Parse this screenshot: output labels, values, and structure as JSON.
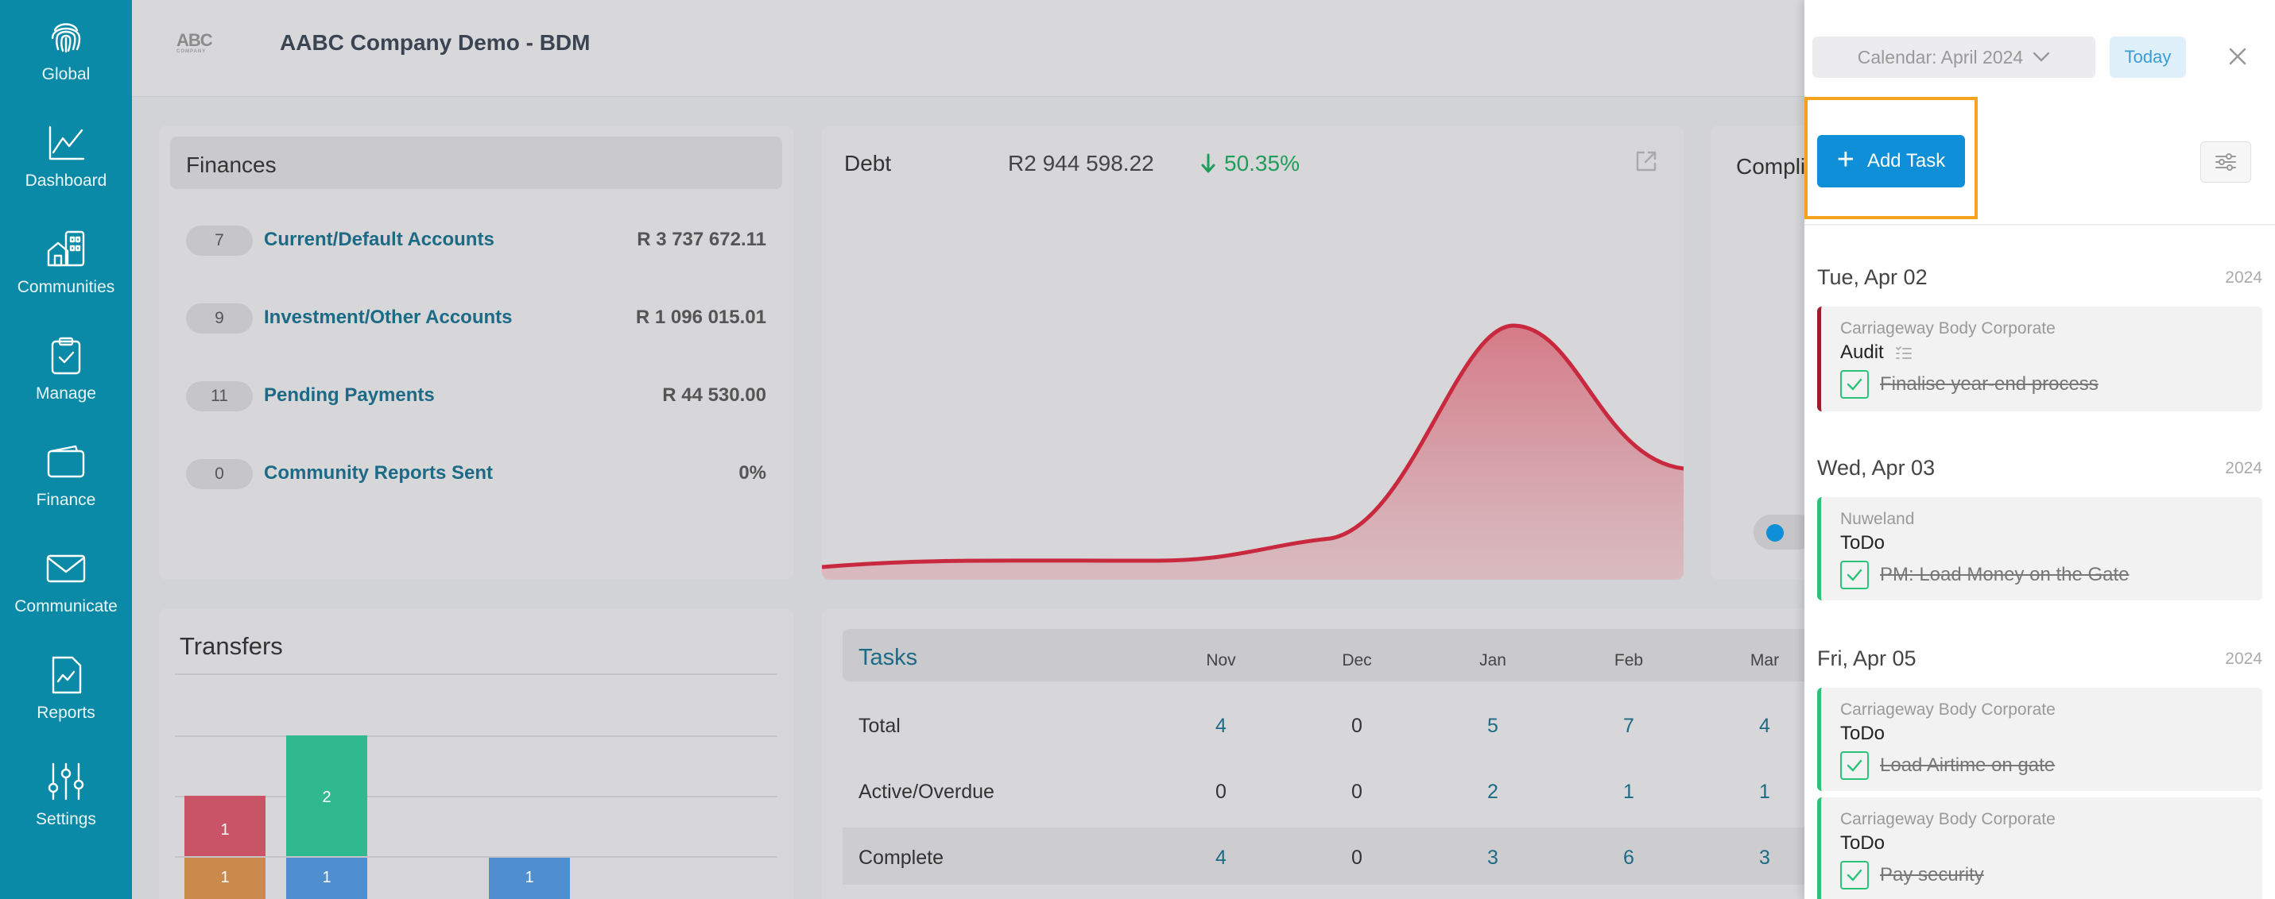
{
  "sidebar": {
    "items": [
      {
        "label": "Global",
        "icon": "fingerprint-icon"
      },
      {
        "label": "Dashboard",
        "icon": "line-chart-icon"
      },
      {
        "label": "Communities",
        "icon": "buildings-icon"
      },
      {
        "label": "Manage",
        "icon": "clipboard-icon"
      },
      {
        "label": "Finance",
        "icon": "wallet-icon"
      },
      {
        "label": "Communicate",
        "icon": "envelope-icon"
      },
      {
        "label": "Reports",
        "icon": "report-icon"
      },
      {
        "label": "Settings",
        "icon": "sliders-icon"
      }
    ]
  },
  "header": {
    "logo_text": "ABC",
    "logo_sub": "COMPANY",
    "company_name": "AABC Company Demo - BDM"
  },
  "finances": {
    "title": "Finances",
    "rows": [
      {
        "count": "7",
        "label": "Current/Default Accounts",
        "amount": "R 3 737 672.11"
      },
      {
        "count": "9",
        "label": "Investment/Other Accounts",
        "amount": "R 1 096 015.01"
      },
      {
        "count": "11",
        "label": "Pending Payments",
        "amount": "R 44 530.00"
      },
      {
        "count": "0",
        "label": "Community Reports Sent",
        "amount": "0%"
      }
    ]
  },
  "debt": {
    "label": "Debt",
    "amount": "R2 944 598.22",
    "change": "50.35%",
    "line_color": "#c8293e"
  },
  "compliance": {
    "label": "Compli"
  },
  "transfers": {
    "title": "Transfers",
    "bars": [
      {
        "segments": [
          {
            "value": "1",
            "color": "#c95466"
          },
          {
            "value": "1",
            "color": "#c98a4b"
          }
        ]
      },
      {
        "segments": [
          {
            "value": "2",
            "color": "#2fb98d"
          },
          {
            "value": "1",
            "color": "#4f8fd0"
          }
        ]
      },
      {
        "segments": [
          {
            "value": "1",
            "color": "#4f8fd0"
          }
        ]
      }
    ]
  },
  "tasks": {
    "title": "Tasks",
    "months": [
      "Nov",
      "Dec",
      "Jan",
      "Feb",
      "Mar"
    ],
    "rows": [
      {
        "label": "Total",
        "values": [
          "4",
          "0",
          "5",
          "7",
          "4"
        ]
      },
      {
        "label": "Active/Overdue",
        "values": [
          "0",
          "0",
          "2",
          "1",
          "1"
        ]
      },
      {
        "label": "Complete",
        "values": [
          "4",
          "0",
          "3",
          "6",
          "3"
        ]
      }
    ]
  },
  "panel": {
    "calendar_label": "Calendar: April 2024",
    "today_label": "Today",
    "add_task_label": "Add Task",
    "days": [
      {
        "date": "Tue, Apr 02",
        "year": "2024",
        "tasks": [
          {
            "org": "Carriageway Body Corporate",
            "type": "Audit",
            "text": "Finalise year-end process",
            "accent": "#9c1c2c"
          }
        ]
      },
      {
        "date": "Wed, Apr 03",
        "year": "2024",
        "tasks": [
          {
            "org": "Nuweland",
            "type": "ToDo",
            "text": "PM: Load Money on the Gate",
            "accent": "#2bc27a"
          }
        ]
      },
      {
        "date": "Fri, Apr 05",
        "year": "2024",
        "tasks": [
          {
            "org": "Carriageway Body Corporate",
            "type": "ToDo",
            "text": "Load Airtime on gate",
            "accent": "#2bc27a"
          },
          {
            "org": "Carriageway Body Corporate",
            "type": "ToDo",
            "text": "Pay security",
            "accent": "#2bc27a"
          }
        ]
      }
    ]
  }
}
